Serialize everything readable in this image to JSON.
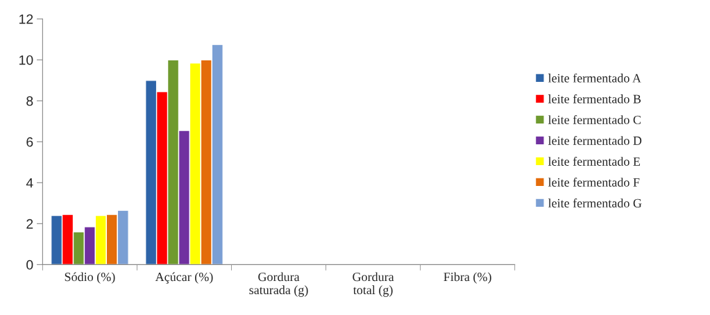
{
  "chart_data": {
    "type": "bar",
    "categories": [
      "Sódio (%)",
      "Açúcar (%)",
      "Gordura\nsaturada (g)",
      "Gordura\ntotal (g)",
      "Fibra (%)"
    ],
    "series": [
      {
        "name": "leite fermentado A",
        "color": "#2e64a8",
        "values": [
          2.4,
          9.0,
          null,
          null,
          null
        ]
      },
      {
        "name": "leite fermentado B",
        "color": "#ff0000",
        "values": [
          2.45,
          8.45,
          null,
          null,
          null
        ]
      },
      {
        "name": "leite fermentado C",
        "color": "#6f9a2e",
        "values": [
          1.6,
          10.0,
          null,
          null,
          null
        ]
      },
      {
        "name": "leite fermentado D",
        "color": "#7030a0",
        "values": [
          1.85,
          6.55,
          null,
          null,
          null
        ]
      },
      {
        "name": "leite fermentado E",
        "color": "#ffff00",
        "values": [
          2.4,
          9.85,
          null,
          null,
          null
        ]
      },
      {
        "name": "leite fermentado F",
        "color": "#e46c0a",
        "values": [
          2.45,
          10.0,
          null,
          null,
          null
        ]
      },
      {
        "name": "leite fermentado G",
        "color": "#7b9fd4",
        "values": [
          2.65,
          10.75,
          null,
          null,
          null
        ]
      }
    ],
    "ylim": [
      0,
      12
    ],
    "yticks": [
      0,
      2,
      4,
      6,
      8,
      10,
      12
    ],
    "grid": false,
    "legend": "right"
  }
}
